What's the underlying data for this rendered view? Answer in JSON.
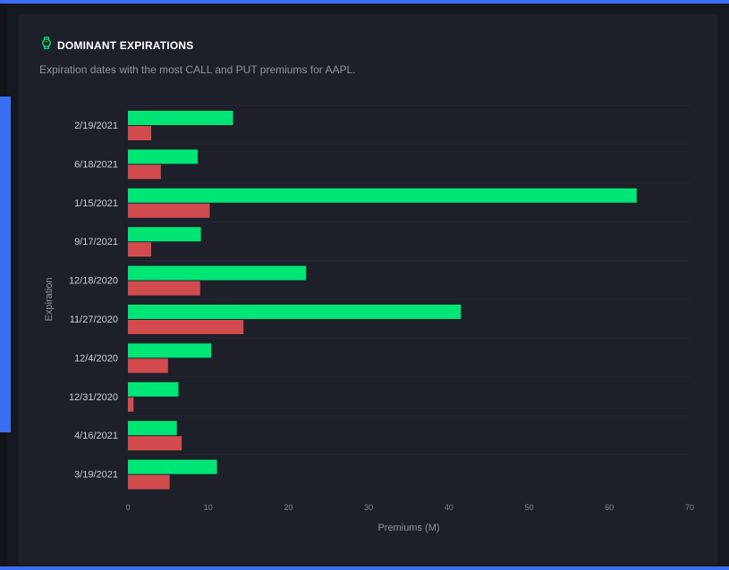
{
  "header": {
    "icon": "watch-icon",
    "title": "DOMINANT EXPIRATIONS",
    "subtitle": "Expiration dates with the most CALL and PUT premiums for AAPL."
  },
  "colors": {
    "call": "#00e676",
    "put": "#d24b4f",
    "accent": "#3b6df2"
  },
  "chart_data": {
    "type": "bar",
    "orientation": "horizontal",
    "xlabel": "Premiums (M)",
    "ylabel": "Expiration",
    "xlim": [
      0,
      70
    ],
    "xticks": [
      0,
      10,
      20,
      30,
      40,
      50,
      60,
      70
    ],
    "categories": [
      "2/19/2021",
      "6/18/2021",
      "1/15/2021",
      "9/17/2021",
      "12/18/2020",
      "11/27/2020",
      "12/4/2020",
      "12/31/2020",
      "4/16/2021",
      "3/19/2021"
    ],
    "series": [
      {
        "key": "call",
        "values": [
          13.1,
          8.7,
          63.4,
          9.1,
          22.2,
          41.5,
          10.4,
          6.3,
          6.1,
          11.1
        ]
      },
      {
        "key": "put",
        "values": [
          2.9,
          4.1,
          10.2,
          2.9,
          9.0,
          14.4,
          5.0,
          0.7,
          6.7,
          5.2
        ]
      }
    ],
    "grid": false,
    "legend": "none"
  }
}
